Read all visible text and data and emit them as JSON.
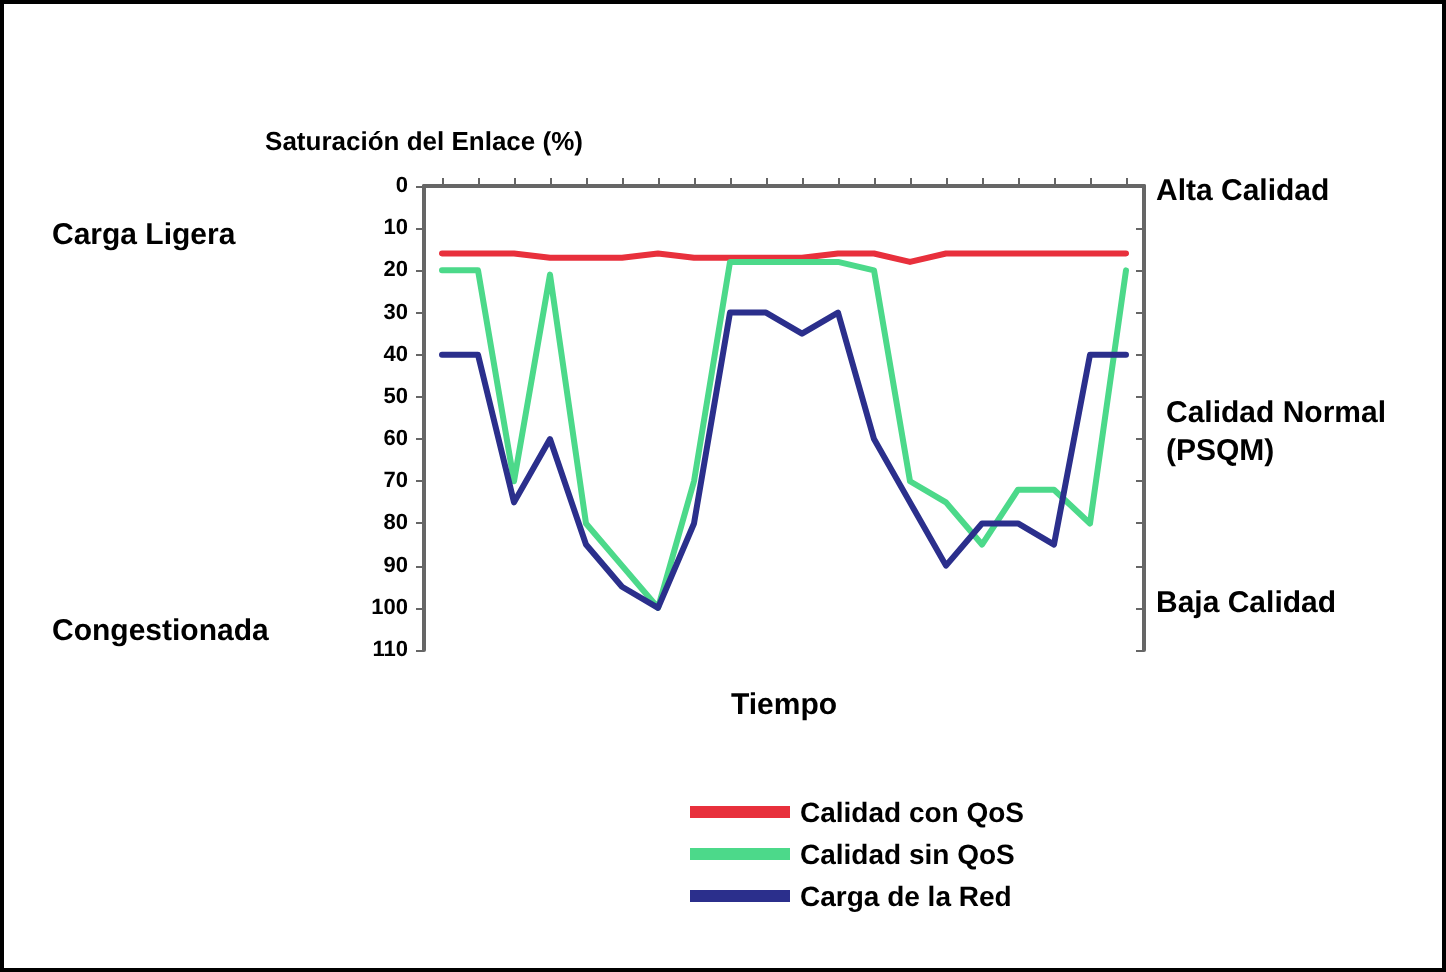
{
  "chart_data": {
    "type": "line",
    "ylabel": "Saturación del Enlace (%)",
    "xlabel": "Tiempo",
    "categories": [
      null,
      null,
      null,
      null,
      null,
      null,
      null,
      null,
      null,
      null,
      null,
      null,
      null,
      null,
      null,
      null,
      null,
      null,
      null,
      null
    ],
    "ylim": [
      110,
      0
    ],
    "yticks": [
      0,
      10,
      20,
      30,
      40,
      50,
      60,
      70,
      80,
      90,
      100,
      110
    ],
    "series": [
      {
        "name": "Calidad con QoS",
        "color": "#e8303c",
        "values": [
          16,
          16,
          16,
          17,
          17,
          17,
          16,
          17,
          17,
          17,
          17,
          16,
          16,
          18,
          16,
          16,
          16,
          16,
          16,
          16
        ]
      },
      {
        "name": "Calidad sin QoS",
        "color": "#4cd98a",
        "values": [
          20,
          20,
          70,
          21,
          80,
          90,
          100,
          70,
          18,
          18,
          18,
          18,
          20,
          70,
          75,
          85,
          72,
          72,
          80,
          20
        ]
      },
      {
        "name": "Carga de la Red",
        "color": "#2b2f8c",
        "values": [
          40,
          40,
          75,
          60,
          85,
          95,
          100,
          80,
          30,
          30,
          35,
          30,
          60,
          75,
          90,
          80,
          80,
          85,
          40,
          40
        ]
      }
    ],
    "annotations": [
      "Carga Ligera",
      "Congestionada",
      "Alta Calidad",
      "Calidad Normal (PSQM)",
      "Baja Calidad"
    ],
    "legend": "bottom",
    "marker": "none",
    "line_style": "solid",
    "grid": false
  }
}
